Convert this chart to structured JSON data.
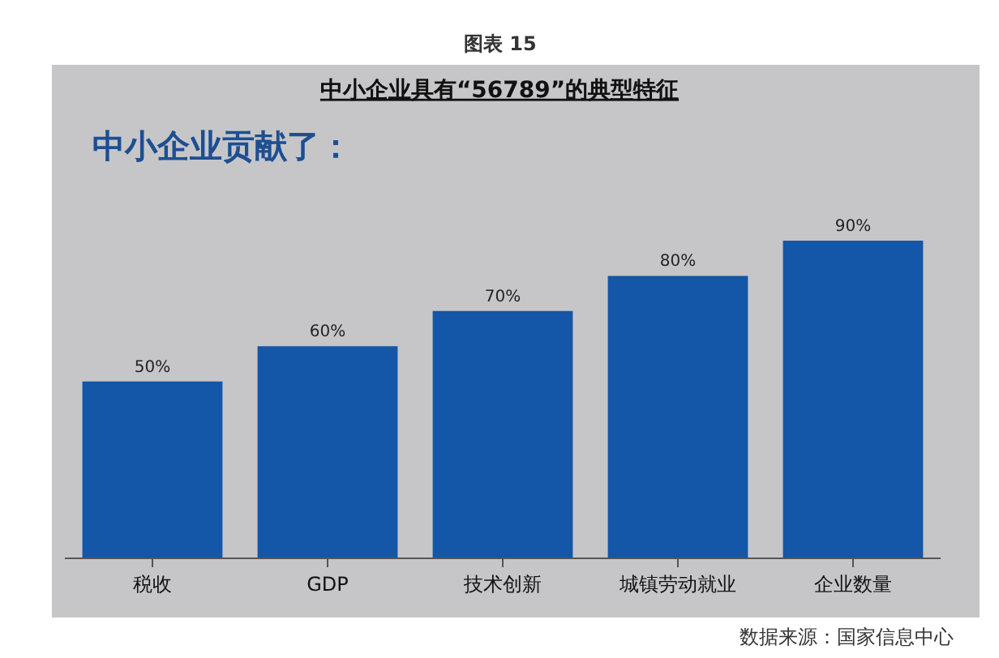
{
  "chart_data": {
    "type": "bar",
    "title": "中小企业具有“56789”的典型特征",
    "subtitle": "中小企业贡献了：",
    "categories": [
      "税收",
      "GDP",
      "技术创新",
      "城镇劳动就业",
      "企业数量"
    ],
    "values": [
      50,
      60,
      70,
      80,
      90
    ],
    "color": "#1456a8",
    "value_labels": [
      "50%",
      "60%",
      "70%",
      "80%",
      "90%"
    ],
    "annotations": [
      "图表 15",
      "数据来源：国家信息中心"
    ],
    "grid": false,
    "legend": false
  }
}
